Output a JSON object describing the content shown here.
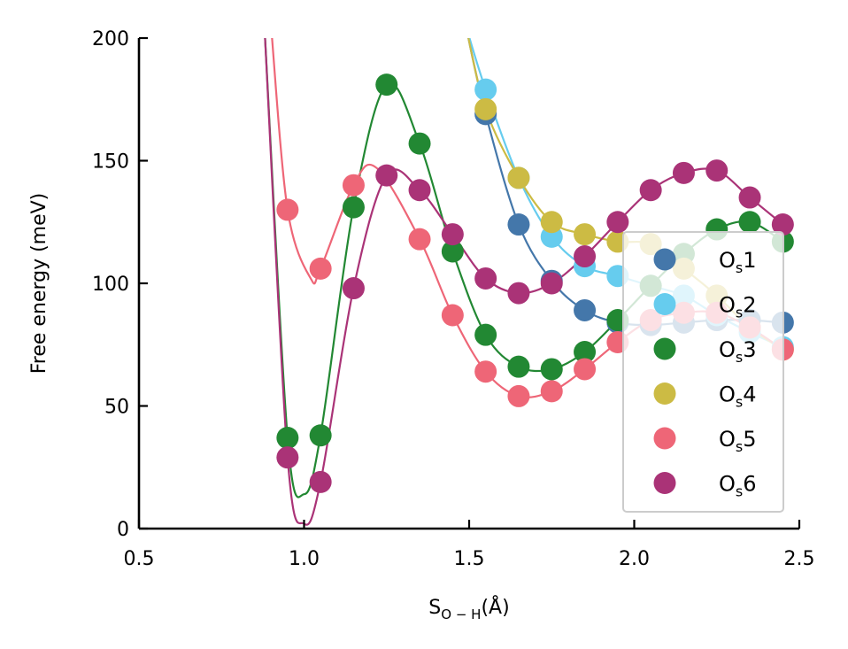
{
  "chart_data": {
    "type": "scatter",
    "title": "",
    "xlabel": {
      "base": "S",
      "sub": "O − H",
      "suffix": "(Å)"
    },
    "ylabel": "Free energy (meV)",
    "xlim": [
      0.5,
      2.5
    ],
    "ylim": [
      0,
      200
    ],
    "xticks": [
      0.5,
      1.0,
      1.5,
      2.0,
      2.5
    ],
    "xtick_labels": [
      "0.5",
      "1.0",
      "1.5",
      "2.0",
      "2.5"
    ],
    "yticks": [
      0,
      50,
      100,
      150,
      200
    ],
    "ytick_labels": [
      "0",
      "50",
      "100",
      "150",
      "200"
    ],
    "grid": false,
    "legend_position": "lower-right",
    "series": [
      {
        "name": "Os1",
        "label_base": "O",
        "label_sub": "s",
        "label_num": "1",
        "color": "#4477AA",
        "points": [
          [
            1.55,
            169
          ],
          [
            1.65,
            124
          ],
          [
            1.75,
            101
          ],
          [
            1.85,
            89
          ],
          [
            1.95,
            84
          ],
          [
            2.05,
            83
          ],
          [
            2.15,
            84
          ],
          [
            2.25,
            85
          ],
          [
            2.35,
            85
          ],
          [
            2.45,
            84
          ]
        ],
        "curve": [
          [
            1.49,
            205
          ],
          [
            1.55,
            169
          ],
          [
            1.65,
            124
          ],
          [
            1.75,
            101
          ],
          [
            1.85,
            89
          ],
          [
            1.95,
            84
          ],
          [
            2.05,
            83
          ],
          [
            2.15,
            84
          ],
          [
            2.25,
            85
          ],
          [
            2.35,
            85
          ],
          [
            2.45,
            84
          ]
        ]
      },
      {
        "name": "Os2",
        "label_base": "O",
        "label_sub": "s",
        "label_num": "2",
        "color": "#66CCEE",
        "points": [
          [
            1.55,
            179
          ],
          [
            1.65,
            143
          ],
          [
            1.75,
            119
          ],
          [
            1.85,
            107
          ],
          [
            1.95,
            103
          ],
          [
            2.05,
            99
          ],
          [
            2.15,
            95
          ],
          [
            2.25,
            87
          ],
          [
            2.35,
            80
          ],
          [
            2.45,
            74
          ]
        ],
        "curve": [
          [
            1.49,
            205
          ],
          [
            1.55,
            179
          ],
          [
            1.65,
            143
          ],
          [
            1.75,
            119
          ],
          [
            1.85,
            107
          ],
          [
            1.95,
            103
          ],
          [
            2.05,
            99
          ],
          [
            2.15,
            95
          ],
          [
            2.25,
            87
          ],
          [
            2.35,
            80
          ],
          [
            2.45,
            74
          ]
        ]
      },
      {
        "name": "Os3",
        "label_base": "O",
        "label_sub": "s",
        "label_num": "3",
        "color": "#228833",
        "points": [
          [
            0.95,
            37
          ],
          [
            1.05,
            38
          ],
          [
            1.15,
            131
          ],
          [
            1.25,
            181
          ],
          [
            1.35,
            157
          ],
          [
            1.45,
            113
          ],
          [
            1.55,
            79
          ],
          [
            1.65,
            66
          ],
          [
            1.75,
            65
          ],
          [
            1.85,
            72
          ],
          [
            1.95,
            85
          ],
          [
            2.05,
            99
          ],
          [
            2.15,
            112
          ],
          [
            2.25,
            122
          ],
          [
            2.35,
            125
          ],
          [
            2.45,
            117
          ]
        ],
        "curve": [
          [
            0.88,
            205
          ],
          [
            0.95,
            37
          ],
          [
            1.0,
            14
          ],
          [
            1.05,
            38
          ],
          [
            1.15,
            131
          ],
          [
            1.25,
            181
          ],
          [
            1.35,
            157
          ],
          [
            1.45,
            113
          ],
          [
            1.55,
            79
          ],
          [
            1.65,
            66
          ],
          [
            1.75,
            65
          ],
          [
            1.85,
            72
          ],
          [
            1.95,
            85
          ],
          [
            2.05,
            99
          ],
          [
            2.15,
            112
          ],
          [
            2.25,
            122
          ],
          [
            2.35,
            125
          ],
          [
            2.45,
            117
          ]
        ]
      },
      {
        "name": "Os4",
        "label_base": "O",
        "label_sub": "s",
        "label_num": "4",
        "color": "#CCBB44",
        "points": [
          [
            1.55,
            171
          ],
          [
            1.65,
            143
          ],
          [
            1.75,
            125
          ],
          [
            1.85,
            120
          ],
          [
            1.95,
            117
          ],
          [
            2.05,
            116
          ],
          [
            2.15,
            106
          ],
          [
            2.25,
            95
          ],
          [
            2.35,
            82
          ],
          [
            2.45,
            73
          ]
        ],
        "curve": [
          [
            1.49,
            205
          ],
          [
            1.55,
            171
          ],
          [
            1.65,
            143
          ],
          [
            1.75,
            125
          ],
          [
            1.85,
            120
          ],
          [
            1.95,
            117
          ],
          [
            2.05,
            116
          ],
          [
            2.15,
            106
          ],
          [
            2.25,
            95
          ],
          [
            2.35,
            82
          ],
          [
            2.45,
            73
          ]
        ]
      },
      {
        "name": "Os5",
        "label_base": "O",
        "label_sub": "s",
        "label_num": "5",
        "color": "#EE6677",
        "points": [
          [
            0.95,
            130
          ],
          [
            1.05,
            106
          ],
          [
            1.15,
            140
          ],
          [
            1.35,
            118
          ],
          [
            1.45,
            87
          ],
          [
            1.55,
            64
          ],
          [
            1.65,
            54
          ],
          [
            1.75,
            56
          ],
          [
            1.85,
            65
          ],
          [
            1.95,
            76
          ],
          [
            2.05,
            85
          ],
          [
            2.15,
            88
          ],
          [
            2.25,
            88
          ],
          [
            2.35,
            82
          ],
          [
            2.45,
            73
          ]
        ],
        "curve": [
          [
            0.9,
            205
          ],
          [
            0.95,
            130
          ],
          [
            1.02,
            102
          ],
          [
            1.05,
            106
          ],
          [
            1.15,
            140
          ],
          [
            1.22,
            147
          ],
          [
            1.35,
            118
          ],
          [
            1.45,
            87
          ],
          [
            1.55,
            64
          ],
          [
            1.65,
            54
          ],
          [
            1.75,
            56
          ],
          [
            1.85,
            65
          ],
          [
            1.95,
            76
          ],
          [
            2.05,
            85
          ],
          [
            2.15,
            88
          ],
          [
            2.25,
            88
          ],
          [
            2.35,
            82
          ],
          [
            2.45,
            73
          ]
        ]
      },
      {
        "name": "Os6",
        "label_base": "O",
        "label_sub": "s",
        "label_num": "6",
        "color": "#AA3377",
        "points": [
          [
            0.95,
            29
          ],
          [
            1.05,
            19
          ],
          [
            1.15,
            98
          ],
          [
            1.25,
            144
          ],
          [
            1.35,
            138
          ],
          [
            1.45,
            120
          ],
          [
            1.55,
            102
          ],
          [
            1.65,
            96
          ],
          [
            1.75,
            100
          ],
          [
            1.85,
            111
          ],
          [
            1.95,
            125
          ],
          [
            2.05,
            138
          ],
          [
            2.15,
            145
          ],
          [
            2.25,
            146
          ],
          [
            2.35,
            135
          ],
          [
            2.45,
            124
          ]
        ],
        "curve": [
          [
            0.88,
            205
          ],
          [
            0.95,
            29
          ],
          [
            1.0,
            2
          ],
          [
            1.05,
            19
          ],
          [
            1.15,
            98
          ],
          [
            1.25,
            144
          ],
          [
            1.35,
            138
          ],
          [
            1.45,
            120
          ],
          [
            1.55,
            102
          ],
          [
            1.65,
            96
          ],
          [
            1.75,
            100
          ],
          [
            1.85,
            111
          ],
          [
            1.95,
            125
          ],
          [
            2.05,
            138
          ],
          [
            2.15,
            145
          ],
          [
            2.25,
            146
          ],
          [
            2.35,
            135
          ],
          [
            2.45,
            124
          ]
        ]
      }
    ]
  }
}
